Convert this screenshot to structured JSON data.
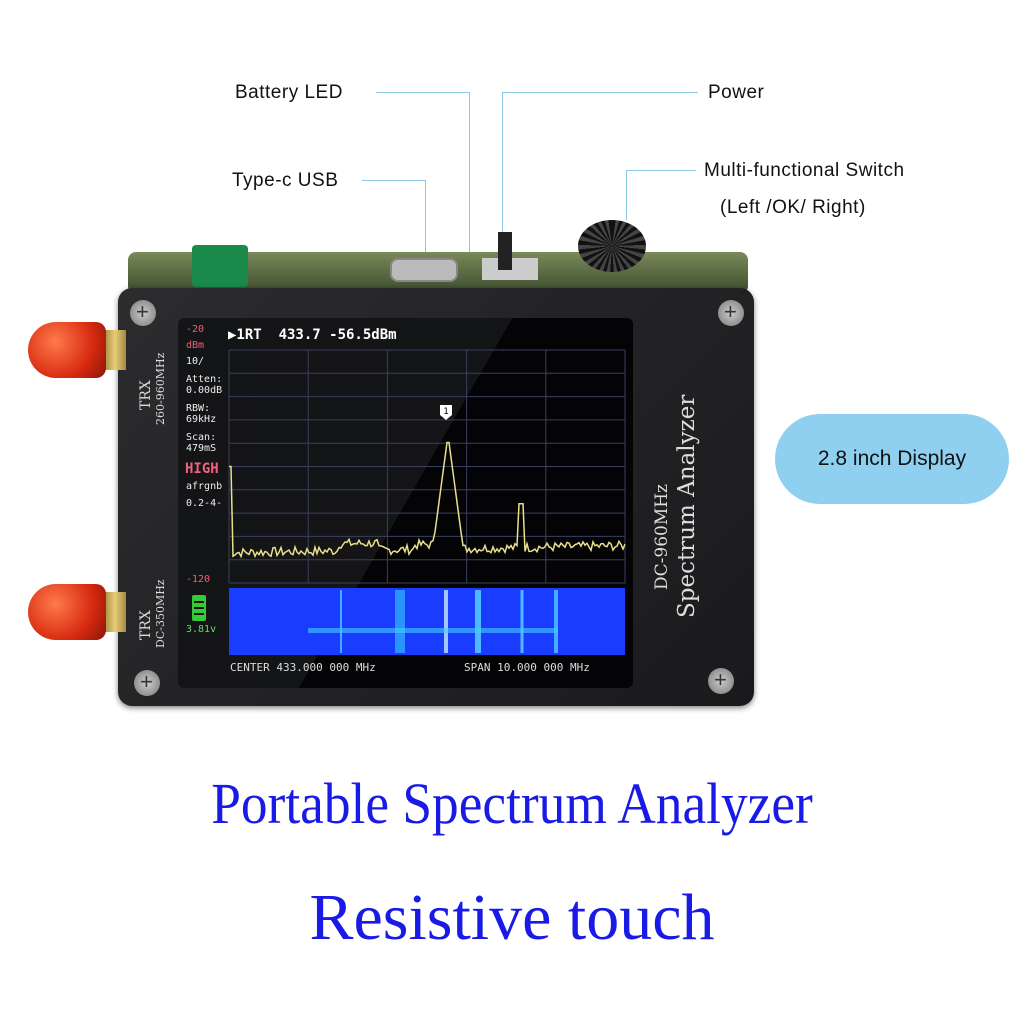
{
  "callouts": {
    "battery_led": "Battery LED",
    "type_c_usb": "Type-c USB",
    "power": "Power",
    "switch_line1": "Multi-functional Switch",
    "switch_line2": "(Left /OK/ Right)"
  },
  "badge": "2.8 inch Display",
  "device": {
    "port_top_label": "TRX",
    "port_top_range": "260-960MHz",
    "port_bottom_label": "TRX",
    "port_bottom_range": "DC-350MHz",
    "case_line1": "DC-960MHz",
    "case_line2": "Spectrum Analyzer"
  },
  "screen": {
    "marker_readout": "▶1RT  433.7 -56.5dBm",
    "marker_label": "1",
    "ref_level": "-20",
    "unit": "dBm",
    "scale": "10/",
    "atten_label": "Atten:",
    "atten_value": "0.00dB",
    "rbw_label": "RBW:",
    "rbw_value": "69kHz",
    "scan_label": "Scan:",
    "scan_value": "479mS",
    "mode": "HIGH",
    "agc": "afrgnb",
    "extra": "0.2-4-",
    "bottom_level": "-120",
    "battery_voltage": "3.81v",
    "center": "CENTER 433.000 000 MHz",
    "span": "SPAN 10.000 000 MHz",
    "trace_color": "#e8e08a",
    "waterfall_color": "#1a3cff"
  },
  "headline1": "Portable Spectrum Analyzer",
  "headline2": "Resistive touch"
}
